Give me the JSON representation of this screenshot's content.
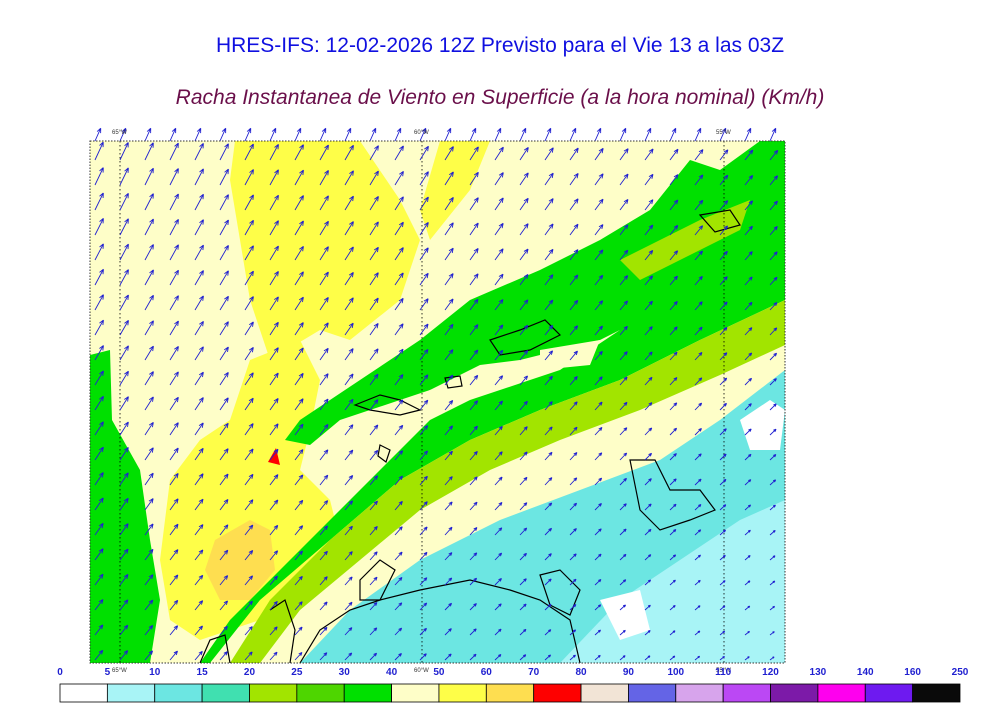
{
  "title": "HRES-IFS: 12-02-2026 12Z Previsto para el Vie 13 a las 03Z",
  "subtitle": "Racha Instantanea de Viento en Superficie (a la hora nominal) (Km/h)",
  "longitudes": {
    "top": [
      "65°W",
      "60°W",
      "55°W"
    ],
    "bottom": [
      "65°W",
      "60°W",
      "55°W"
    ]
  },
  "colorbar": {
    "labels": [
      "0",
      "5",
      "10",
      "15",
      "20",
      "25",
      "30",
      "40",
      "50",
      "60",
      "70",
      "80",
      "90",
      "100",
      "110",
      "120",
      "130",
      "140",
      "160",
      "250"
    ],
    "colors": [
      "#ffffff",
      "#a8f4f6",
      "#6ce6e2",
      "#40e0b0",
      "#a2e400",
      "#4ed600",
      "#00e000",
      "#fefec8",
      "#fefe48",
      "#fede50",
      "#fe0000",
      "#f2e4d6",
      "#6464e6",
      "#d7a4ec",
      "#bb48f4",
      "#7c1aa8",
      "#fe00ee",
      "#6e1af0",
      "#0a0a0a"
    ],
    "label_color": "#2020d0"
  },
  "map_colors": {
    "pale_yellow": "#fefec8",
    "yellow": "#fefe48",
    "orange": "#fede50",
    "green": "#00e000",
    "light_green": "#a2e400",
    "cyan": "#6ce6e2",
    "pale_cyan": "#a8f4f6",
    "arrow": "#2020d0"
  }
}
